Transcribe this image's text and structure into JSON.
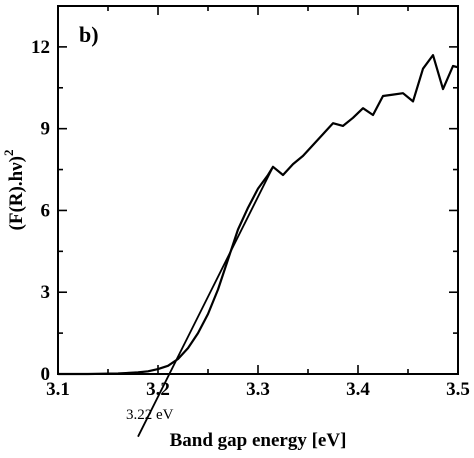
{
  "chart_data": {
    "type": "line",
    "panel_label": "b)",
    "xlabel": "Band gap energy [eV]",
    "ylabel_main": "(F(R).hν)",
    "ylabel_sup": "2",
    "xlim": [
      3.1,
      3.5
    ],
    "ylim": [
      0,
      13.5
    ],
    "x_ticks": [
      3.1,
      3.2,
      3.3,
      3.4,
      3.5
    ],
    "x_tick_labels": [
      "3.1",
      "3.2",
      "3.3",
      "3.4",
      "3.5"
    ],
    "y_ticks": [
      0,
      3,
      6,
      9,
      12
    ],
    "y_tick_labels": [
      "0",
      "3",
      "6",
      "9",
      "12"
    ],
    "grid": false,
    "series": [
      {
        "x": [
          3.1,
          3.13,
          3.16,
          3.18,
          3.19,
          3.2,
          3.21,
          3.22,
          3.23,
          3.24,
          3.25,
          3.26,
          3.27,
          3.28,
          3.29,
          3.3,
          3.31,
          3.315,
          3.325,
          3.335,
          3.345,
          3.355,
          3.365,
          3.375,
          3.385,
          3.395,
          3.405,
          3.415,
          3.425,
          3.435,
          3.445,
          3.455,
          3.465,
          3.475,
          3.485,
          3.495,
          3.5
        ],
        "y": [
          0.0,
          0.0,
          0.02,
          0.06,
          0.1,
          0.18,
          0.3,
          0.55,
          0.95,
          1.5,
          2.2,
          3.1,
          4.2,
          5.3,
          6.1,
          6.8,
          7.3,
          7.6,
          7.3,
          7.7,
          8.0,
          8.4,
          8.8,
          9.2,
          9.1,
          9.4,
          9.75,
          9.5,
          10.2,
          10.25,
          10.3,
          10.0,
          11.2,
          11.7,
          10.45,
          11.3,
          11.25
        ]
      }
    ],
    "tangent": {
      "x": [
        3.18,
        3.315
      ],
      "y": [
        -2.3,
        7.6
      ]
    },
    "annotation": {
      "text": "3.22 eV"
    },
    "colors": {
      "line": "#000000",
      "background": "#ffffff"
    }
  }
}
